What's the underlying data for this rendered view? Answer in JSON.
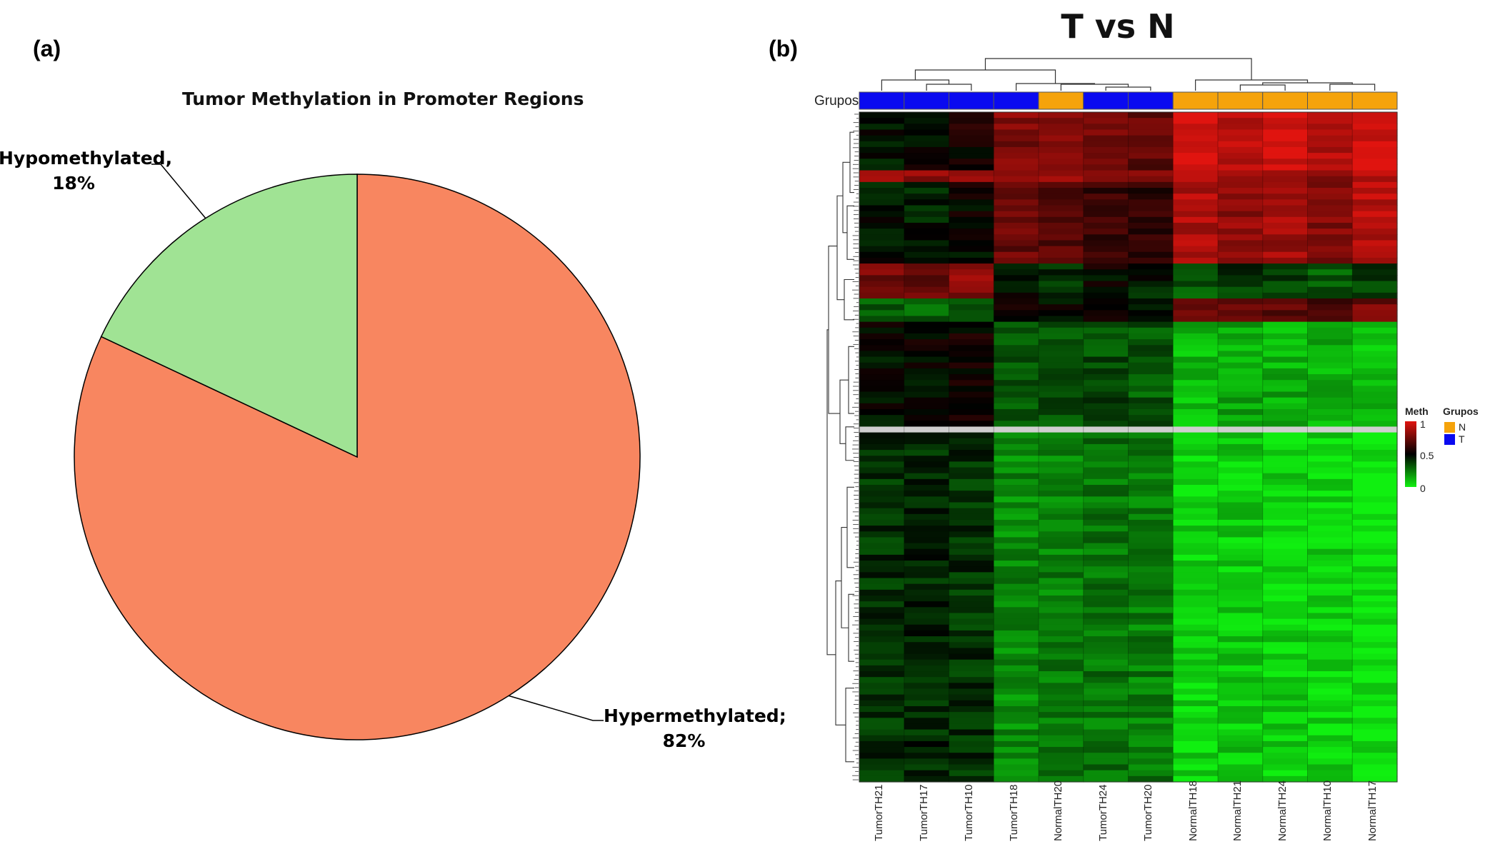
{
  "panels": {
    "a": "(a)",
    "b": "(b)"
  },
  "colors": {
    "hyper": "#F88660",
    "hypo": "#A0E394",
    "group_N": "#F5A30B",
    "group_T": "#0A0AF0",
    "meth_high": "#E0140F",
    "meth_mid": "#000000",
    "meth_low": "#10F010"
  },
  "chart_data": [
    {
      "type": "pie",
      "title": "Tumor Methylation in Promoter Regions",
      "slices": [
        {
          "label": "Hypermethylated;",
          "value": 82,
          "value_label": "82%",
          "color": "#F88660"
        },
        {
          "label": "Hypomethylated,",
          "value": 18,
          "value_label": "18%",
          "color": "#A0E394"
        }
      ]
    },
    {
      "type": "heatmap",
      "title": "T vs N",
      "annotation_row_label": "Grupos",
      "columns": [
        "TumorTH21",
        "TumorTH17",
        "TumorTH10",
        "TumorTH18",
        "NormalTH20",
        "TumorTH24",
        "TumorTH20",
        "NormalTH18",
        "NormalTH21",
        "NormalTH24",
        "NormalTH10",
        "NormalTH17"
      ],
      "groups": [
        "T",
        "T",
        "T",
        "T",
        "N",
        "T",
        "T",
        "N",
        "N",
        "N",
        "N",
        "N"
      ],
      "row_blocks": [
        {
          "rows": 10,
          "values": [
            0.45,
            0.5,
            0.55,
            0.78,
            0.8,
            0.75,
            0.72,
            0.98,
            0.92,
            0.95,
            0.88,
            0.98
          ]
        },
        {
          "rows": 2,
          "values": [
            0.85,
            0.82,
            0.85,
            0.88,
            0.85,
            0.8,
            0.8,
            0.9,
            0.85,
            0.85,
            0.8,
            0.88
          ]
        },
        {
          "rows": 14,
          "values": [
            0.45,
            0.45,
            0.5,
            0.72,
            0.7,
            0.62,
            0.6,
            0.88,
            0.82,
            0.85,
            0.8,
            0.9
          ]
        },
        {
          "rows": 6,
          "values": [
            0.75,
            0.72,
            0.8,
            0.5,
            0.42,
            0.5,
            0.45,
            0.32,
            0.38,
            0.35,
            0.32,
            0.38
          ]
        },
        {
          "rows": 4,
          "values": [
            0.3,
            0.3,
            0.35,
            0.5,
            0.5,
            0.55,
            0.5,
            0.75,
            0.7,
            0.72,
            0.68,
            0.75
          ]
        },
        {
          "rows": 18,
          "values": [
            0.48,
            0.5,
            0.52,
            0.3,
            0.32,
            0.35,
            0.32,
            0.12,
            0.15,
            0.14,
            0.13,
            0.1
          ]
        },
        {
          "rows": 1,
          "values": null
        },
        {
          "rows": 60,
          "values": [
            0.4,
            0.42,
            0.4,
            0.22,
            0.24,
            0.26,
            0.24,
            0.06,
            0.08,
            0.07,
            0.06,
            0.03
          ]
        }
      ],
      "legend": {
        "meth_title": "Meth",
        "meth_ticks": [
          "1",
          "0.5",
          "0"
        ],
        "grupos_title": "Grupos",
        "grupos": [
          {
            "label": "N",
            "color": "#F5A30B"
          },
          {
            "label": "T",
            "color": "#0A0AF0"
          }
        ]
      }
    }
  ]
}
